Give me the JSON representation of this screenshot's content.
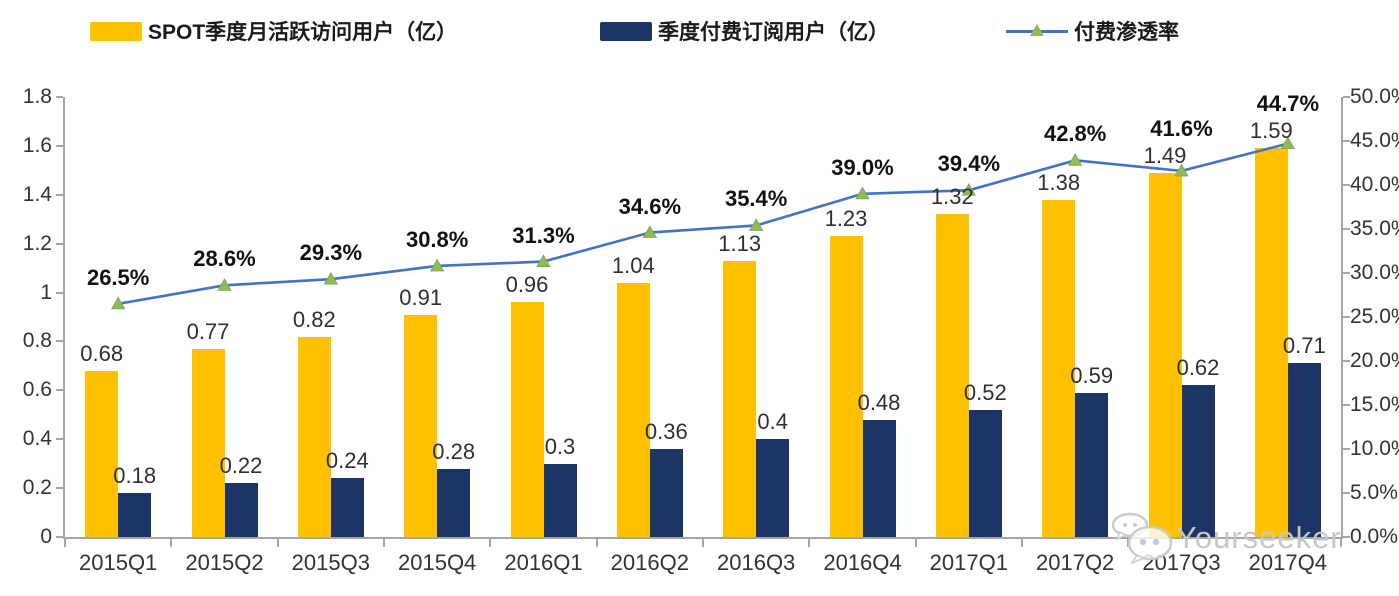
{
  "legend": [
    {
      "label": "SPOT季度月活跃访问用户（亿）",
      "type": "bar",
      "color": "#FFC000"
    },
    {
      "label": "季度付费订阅用户（亿）",
      "type": "bar",
      "color": "#1D3566"
    },
    {
      "label": "付费渗透率",
      "type": "line",
      "color": "#4472C4",
      "marker_color": "#8FBA56"
    }
  ],
  "watermark": {
    "text": "Yourseeker",
    "icon": "wechat-bubbles-icon"
  },
  "chart_data": {
    "type": "combo-bar-line",
    "categories": [
      "2015Q1",
      "2015Q2",
      "2015Q3",
      "2015Q4",
      "2016Q1",
      "2016Q2",
      "2016Q3",
      "2016Q4",
      "2017Q1",
      "2017Q2",
      "2017Q3",
      "2017Q4"
    ],
    "series": [
      {
        "name": "SPOT季度月活跃访问用户（亿）",
        "type": "bar",
        "axis": "left",
        "color": "#FFC000",
        "values": [
          0.68,
          0.77,
          0.82,
          0.91,
          0.96,
          1.04,
          1.13,
          1.23,
          1.32,
          1.38,
          1.49,
          1.59
        ],
        "labels": [
          "0.68",
          "0.77",
          "0.82",
          "0.91",
          "0.96",
          "1.04",
          "1.13",
          "1.23",
          "1.32",
          "1.38",
          "1.49",
          "1.59"
        ]
      },
      {
        "name": "季度付费订阅用户（亿）",
        "type": "bar",
        "axis": "left",
        "color": "#1D3566",
        "values": [
          0.18,
          0.22,
          0.24,
          0.28,
          0.3,
          0.36,
          0.4,
          0.48,
          0.52,
          0.59,
          0.62,
          0.71
        ],
        "labels": [
          "0.18",
          "0.22",
          "0.24",
          "0.28",
          "0.3",
          "0.36",
          "0.4",
          "0.48",
          "0.52",
          "0.59",
          "0.62",
          "0.71"
        ]
      },
      {
        "name": "付费渗透率",
        "type": "line",
        "axis": "right",
        "color": "#4472C4",
        "marker": "triangle",
        "marker_color": "#8FBA56",
        "values": [
          26.5,
          28.6,
          29.3,
          30.8,
          31.3,
          34.6,
          35.4,
          39.0,
          39.4,
          42.8,
          41.6,
          44.7
        ],
        "labels": [
          "26.5%",
          "28.6%",
          "29.3%",
          "30.8%",
          "31.3%",
          "34.6%",
          "35.4%",
          "39.0%",
          "39.4%",
          "42.8%",
          "41.6%",
          "44.7%"
        ]
      }
    ],
    "left_axis": {
      "min": 0,
      "max": 1.8,
      "step": 0.2,
      "tick_labels": [
        "0",
        "0.2",
        "0.4",
        "0.6",
        "0.8",
        "1",
        "1.2",
        "1.4",
        "1.6",
        "1.8"
      ]
    },
    "right_axis": {
      "min": 0,
      "max": 50,
      "step": 5,
      "position": "right",
      "tick_labels": [
        "0.0%",
        "5.0%",
        "10.0%",
        "15.0%",
        "20.0%",
        "25.0%",
        "30.0%",
        "35.0%",
        "40.0%",
        "45.0%",
        "50.0%"
      ]
    },
    "grid": false,
    "legend_position": "top",
    "title": ""
  }
}
